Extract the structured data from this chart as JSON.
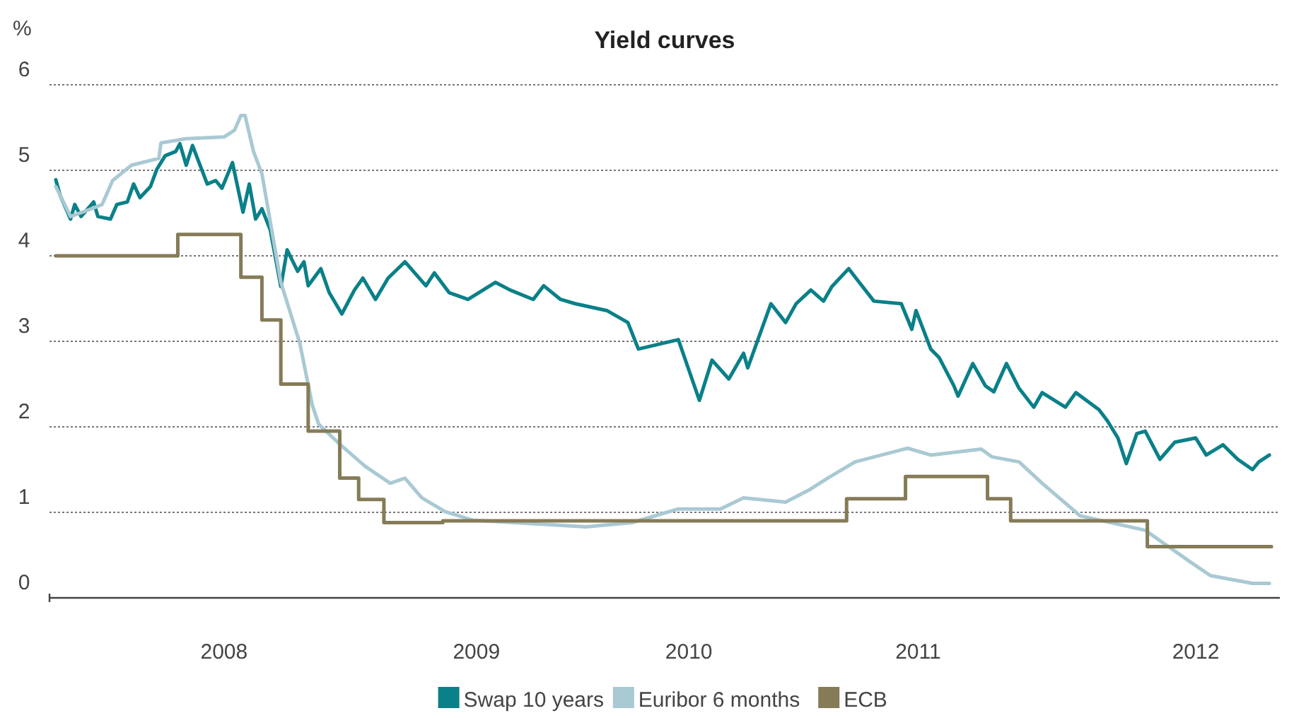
{
  "chart_data": {
    "type": "line",
    "title": "Yield curves",
    "ylabel": "%",
    "xlim": [
      2007,
      2012.85
    ],
    "ylim": [
      0,
      6
    ],
    "yticks": [
      0,
      1,
      2,
      3,
      4,
      5,
      6
    ],
    "xticks": [
      {
        "value": 2007.83,
        "label": "2008"
      },
      {
        "value": 2009.03,
        "label": "2009"
      },
      {
        "value": 2010.04,
        "label": "2010"
      },
      {
        "value": 2011.13,
        "label": "2011"
      },
      {
        "value": 2012.45,
        "label": "2012"
      }
    ],
    "grid": "y",
    "legend": "bottom",
    "line_style": "solid",
    "marker": "none",
    "series": [
      {
        "name": "Swap 10 years",
        "color": "#0a8088",
        "x": [
          2007.03,
          2007.05,
          2007.1,
          2007.12,
          2007.15,
          2007.21,
          2007.23,
          2007.29,
          2007.32,
          2007.37,
          2007.4,
          2007.43,
          2007.48,
          2007.51,
          2007.55,
          2007.6,
          2007.62,
          2007.65,
          2007.68,
          2007.75,
          2007.79,
          2007.82,
          2007.87,
          2007.92,
          2007.95,
          2007.98,
          2008.01,
          2008.05,
          2008.1,
          2008.13,
          2008.18,
          2008.21,
          2008.23,
          2008.29,
          2008.33,
          2008.39,
          2008.45,
          2008.49,
          2008.55,
          2008.61,
          2008.69,
          2008.79,
          2008.83,
          2008.9,
          2008.99,
          2009.12,
          2009.19,
          2009.3,
          2009.35,
          2009.43,
          2009.5,
          2009.65,
          2009.75,
          2009.8,
          2009.99,
          2010.09,
          2010.15,
          2010.23,
          2010.3,
          2010.32,
          2010.43,
          2010.5,
          2010.55,
          2010.62,
          2010.68,
          2010.72,
          2010.8,
          2010.85,
          2010.92,
          2011.05,
          2011.1,
          2011.12,
          2011.19,
          2011.23,
          2011.3,
          2011.32,
          2011.39,
          2011.45,
          2011.49,
          2011.55,
          2011.61,
          2011.68,
          2011.72,
          2011.83,
          2011.88,
          2011.99,
          2012.03,
          2012.08,
          2012.12,
          2012.17,
          2012.21,
          2012.28,
          2012.35,
          2012.45,
          2012.5,
          2012.58,
          2012.65,
          2012.72,
          2012.75,
          2012.8
        ],
        "values": [
          4.89,
          4.71,
          4.43,
          4.6,
          4.46,
          4.63,
          4.46,
          4.43,
          4.6,
          4.63,
          4.84,
          4.68,
          4.81,
          5.01,
          5.17,
          5.22,
          5.31,
          5.06,
          5.29,
          4.84,
          4.88,
          4.79,
          5.09,
          4.51,
          4.84,
          4.43,
          4.55,
          4.3,
          3.64,
          4.07,
          3.82,
          3.93,
          3.65,
          3.85,
          3.57,
          3.32,
          3.6,
          3.74,
          3.49,
          3.74,
          3.93,
          3.65,
          3.8,
          3.57,
          3.49,
          3.69,
          3.6,
          3.49,
          3.65,
          3.49,
          3.44,
          3.36,
          3.22,
          2.91,
          3.02,
          2.31,
          2.78,
          2.56,
          2.86,
          2.69,
          3.44,
          3.22,
          3.44,
          3.6,
          3.47,
          3.64,
          3.85,
          3.69,
          3.47,
          3.44,
          3.14,
          3.36,
          2.91,
          2.81,
          2.48,
          2.36,
          2.74,
          2.48,
          2.41,
          2.74,
          2.45,
          2.23,
          2.4,
          2.23,
          2.4,
          2.2,
          2.07,
          1.87,
          1.57,
          1.92,
          1.95,
          1.62,
          1.82,
          1.87,
          1.67,
          1.79,
          1.62,
          1.5,
          1.59,
          1.67
        ]
      },
      {
        "name": "Euribor 6 months",
        "color": "#a9c9d3",
        "x": [
          2007.03,
          2007.1,
          2007.21,
          2007.25,
          2007.3,
          2007.39,
          2007.52,
          2007.53,
          2007.65,
          2007.83,
          2007.88,
          2007.91,
          2007.93,
          2007.97,
          2008.01,
          2008.1,
          2008.19,
          2008.25,
          2008.28,
          2008.37,
          2008.5,
          2008.62,
          2008.69,
          2008.77,
          2008.88,
          2009.01,
          2009.21,
          2009.55,
          2009.77,
          2009.99,
          2010.19,
          2010.3,
          2010.5,
          2010.61,
          2010.7,
          2010.83,
          2011.08,
          2011.19,
          2011.43,
          2011.48,
          2011.61,
          2011.72,
          2011.9,
          2012.21,
          2012.43,
          2012.52,
          2012.72,
          2012.8
        ],
        "values": [
          4.81,
          4.46,
          4.56,
          4.6,
          4.88,
          5.06,
          5.14,
          5.32,
          5.37,
          5.39,
          5.47,
          5.64,
          5.64,
          5.22,
          4.96,
          3.69,
          2.98,
          2.25,
          2.03,
          1.82,
          1.54,
          1.34,
          1.4,
          1.17,
          1.01,
          0.91,
          0.88,
          0.83,
          0.88,
          1.04,
          1.04,
          1.17,
          1.12,
          1.26,
          1.4,
          1.59,
          1.75,
          1.67,
          1.74,
          1.65,
          1.59,
          1.34,
          0.96,
          0.79,
          0.41,
          0.26,
          0.17,
          0.17
        ]
      },
      {
        "name": "ECB",
        "type": "step",
        "color": "#857b57",
        "x": [
          2007.03,
          2007.61,
          2007.91,
          2008.01,
          2008.1,
          2008.23,
          2008.38,
          2008.47,
          2008.59,
          2008.87,
          2010.79,
          2011.07,
          2011.46,
          2011.57,
          2012.22,
          2012.81
        ],
        "values": [
          4.0,
          4.25,
          3.75,
          3.25,
          2.5,
          1.95,
          1.4,
          1.15,
          0.88,
          0.9,
          1.16,
          1.42,
          1.16,
          0.9,
          0.6,
          0.6
        ]
      }
    ]
  }
}
